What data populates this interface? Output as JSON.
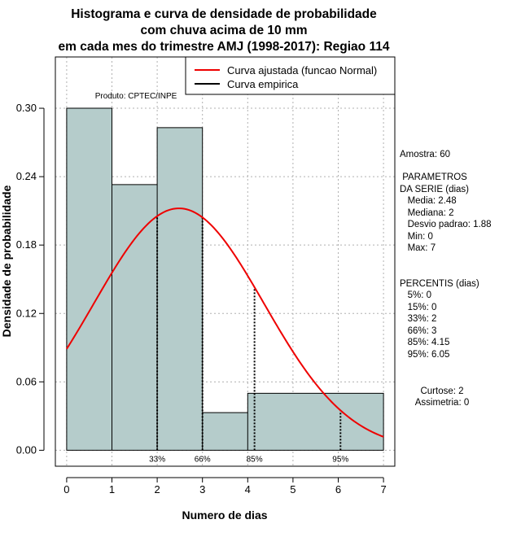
{
  "chart_data": {
    "type": "bar",
    "title": [
      "Histograma e curva de densidade de probabilidade",
      "com chuva acima de 10 mm",
      "em cada mes do trimestre AMJ (1998-2017): Regiao 114"
    ],
    "xlabel": "Numero de dias",
    "ylabel": "Densidade de probabilidade",
    "xlim": [
      -0.25,
      7.25
    ],
    "ylim": [
      -0.014,
      0.345
    ],
    "x_ticks": [
      0,
      1,
      2,
      3,
      4,
      5,
      6,
      7
    ],
    "y_ticks": [
      0.0,
      0.06,
      0.12,
      0.18,
      0.24,
      0.3
    ],
    "y_tick_labels": [
      "0.00",
      "0.06",
      "0.12",
      "0.18",
      "0.24",
      "0.30"
    ],
    "bins": [
      {
        "from": 0,
        "to": 1,
        "value": 0.3
      },
      {
        "from": 1,
        "to": 2,
        "value": 0.233
      },
      {
        "from": 2,
        "to": 3,
        "value": 0.283
      },
      {
        "from": 3,
        "to": 4,
        "value": 0.033
      },
      {
        "from": 4,
        "to": 7,
        "value": 0.05
      }
    ],
    "normal_curve": {
      "mean": 2.48,
      "sd": 1.88,
      "x_from": 0,
      "x_to": 7
    },
    "percentile_lines": [
      {
        "label": "33%",
        "x": 2
      },
      {
        "label": "66%",
        "x": 3
      },
      {
        "label": "85%",
        "x": 4.15
      },
      {
        "label": "95%",
        "x": 6.05
      }
    ],
    "legend": [
      {
        "label": "Curva ajustada (funcao Normal)",
        "color": "#ee0000"
      },
      {
        "label": "Curva empirica",
        "color": "#000000"
      }
    ],
    "product_note": "Produto: CPTEC/INPE",
    "colors": {
      "bar_fill": "#b5cccb",
      "curve": "#ee0000",
      "grid": "#b0b0b0"
    }
  },
  "stats": {
    "sample": "Amostra: 60",
    "params": [
      " PARAMETROS",
      "DA SERIE (dias)",
      "   Media: 2.48",
      "   Mediana: 2",
      "   Desvio padrao: 1.88",
      "   Min: 0",
      "   Max: 7"
    ],
    "percentiles": [
      "PERCENTIS (dias)",
      "   5%: 0",
      "   15%: 0",
      "   33%: 2",
      "   66%: 3",
      "   85%: 4.15",
      "   95%: 6.05"
    ],
    "shape": [
      "Curtose: 2",
      "Assimetria: 0"
    ]
  }
}
